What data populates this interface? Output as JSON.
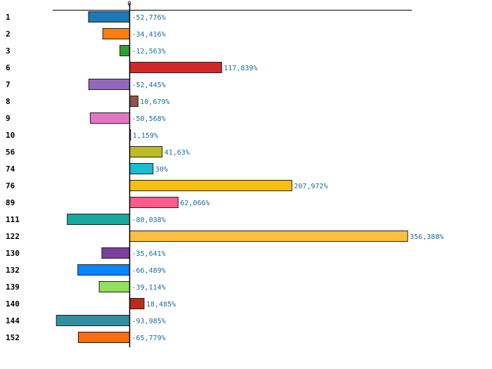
{
  "chart_data": {
    "type": "bar",
    "orientation": "horizontal",
    "title": "",
    "xlabel": "",
    "ylabel": "",
    "zero_tick_label": "0",
    "xlim": [
      -115,
      400
    ],
    "grid": false,
    "legend": "none",
    "value_suffix": "%",
    "categories": [
      "1",
      "2",
      "3",
      "6",
      "7",
      "8",
      "9",
      "10",
      "56",
      "74",
      "76",
      "89",
      "111",
      "122",
      "130",
      "132",
      "139",
      "140",
      "144",
      "152"
    ],
    "values": [
      -52.776,
      -34.416,
      -12.563,
      117.839,
      -52.445,
      10.679,
      -50.568,
      1.159,
      41.63,
      30,
      207.972,
      62.066,
      -80.038,
      356.388,
      -35.641,
      -66.489,
      -39.114,
      18.485,
      -93.985,
      -65.779
    ],
    "value_labels": [
      "-52,776%",
      "-34,416%",
      "-12,563%",
      "117,839%",
      "-52,445%",
      "10,679%",
      "-50,568%",
      "1,159%",
      "41,63%",
      "30%",
      "207,972%",
      "62,066%",
      "-80,038%",
      "356,388%",
      "-35,641%",
      "-66,489%",
      "-39,114%",
      "18,485%",
      "-93,985%",
      "-65,779%"
    ],
    "colors": [
      "#1f77b4",
      "#ff7f0e",
      "#2ca02c",
      "#d62728",
      "#9467bd",
      "#8c564b",
      "#e377c2",
      "#7f7f7f",
      "#bcbd22",
      "#17becf",
      "#f5c010",
      "#ff5a8c",
      "#14aaa0",
      "#ffc040",
      "#7b3f9e",
      "#0a84ff",
      "#8fe05a",
      "#c0281e",
      "#2e8fa0",
      "#ff6a14"
    ]
  }
}
